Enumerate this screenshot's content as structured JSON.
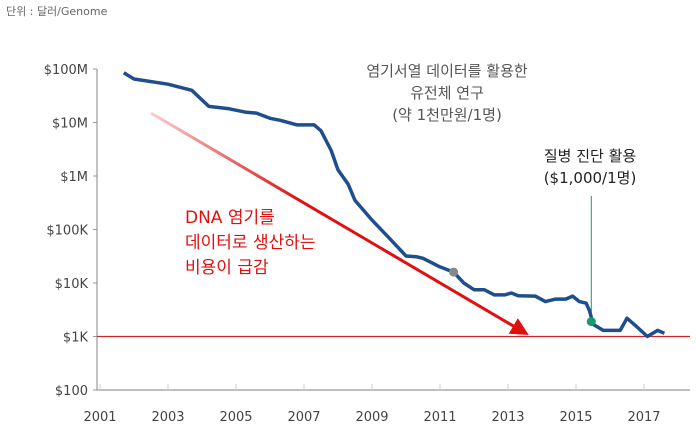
{
  "chart_data": {
    "type": "line",
    "unit_label": "단위 : 달러/Genome",
    "y_scale": "log",
    "ylim": [
      100,
      100000000
    ],
    "xlim": [
      2001,
      2018
    ],
    "y_ticks": [
      {
        "value": 100000000,
        "label": "$100M"
      },
      {
        "value": 10000000,
        "label": "$10M"
      },
      {
        "value": 1000000,
        "label": "$1M"
      },
      {
        "value": 100000,
        "label": "$100K"
      },
      {
        "value": 10000,
        "label": "$10K"
      },
      {
        "value": 1000,
        "label": "$1K"
      },
      {
        "value": 100,
        "label": "$100"
      }
    ],
    "x_ticks": [
      "2001",
      "2003",
      "2005",
      "2007",
      "2009",
      "2011",
      "2013",
      "2015",
      "2017"
    ],
    "series": [
      {
        "color": "#1f4e8c",
        "points": [
          [
            2001.7,
            85000000
          ],
          [
            2002.0,
            65000000
          ],
          [
            2003.0,
            52000000
          ],
          [
            2003.7,
            40000000
          ],
          [
            2004.2,
            20000000
          ],
          [
            2004.8,
            18000000
          ],
          [
            2005.3,
            15500000
          ],
          [
            2005.6,
            15000000
          ],
          [
            2006.0,
            12000000
          ],
          [
            2006.3,
            11000000
          ],
          [
            2006.8,
            9000000
          ],
          [
            2007.3,
            9000000
          ],
          [
            2007.5,
            7000000
          ],
          [
            2007.8,
            3000000
          ],
          [
            2008.0,
            1300000
          ],
          [
            2008.3,
            700000
          ],
          [
            2008.5,
            350000
          ],
          [
            2009.0,
            150000
          ],
          [
            2009.5,
            70000
          ],
          [
            2010.0,
            32000
          ],
          [
            2010.3,
            31000
          ],
          [
            2010.5,
            29000
          ],
          [
            2011.0,
            20000
          ],
          [
            2011.4,
            16000
          ],
          [
            2011.7,
            10000
          ],
          [
            2012.0,
            7500
          ],
          [
            2012.3,
            7500
          ],
          [
            2012.6,
            6000
          ],
          [
            2012.9,
            6000
          ],
          [
            2013.1,
            6500
          ],
          [
            2013.3,
            5800
          ],
          [
            2013.8,
            5700
          ],
          [
            2014.1,
            4500
          ],
          [
            2014.4,
            5000
          ],
          [
            2014.7,
            5000
          ],
          [
            2014.9,
            5700
          ],
          [
            2015.1,
            4500
          ],
          [
            2015.3,
            4200
          ],
          [
            2015.4,
            3000
          ],
          [
            2015.5,
            1700
          ],
          [
            2015.8,
            1300
          ],
          [
            2016.3,
            1300
          ],
          [
            2016.5,
            2200
          ],
          [
            2016.8,
            1500
          ],
          [
            2017.1,
            1000
          ],
          [
            2017.4,
            1300
          ],
          [
            2017.6,
            1150
          ]
        ]
      }
    ],
    "reference_line": {
      "value": 1000,
      "color": "#d0202a"
    },
    "markers": [
      {
        "x": 2011.4,
        "y": 16000,
        "color": "#888888"
      },
      {
        "x": 2015.45,
        "y": 1900,
        "color": "#1a9a6a"
      }
    ],
    "trend_arrow": {
      "from": [
        2002.5,
        15000000
      ],
      "to": [
        2013.5,
        1000
      ],
      "color": "#e01010"
    },
    "annotations": {
      "research": [
        "염기서열 데이터를 활용한",
        "유전체 연구",
        "(약 1천만원/1명)"
      ],
      "diagnosis": [
        "질병 진단 활용",
        "($1,000/1명)"
      ],
      "trend": [
        "DNA 염기를",
        "데이터로 생산하는",
        "비용이 급감"
      ]
    },
    "grid": false
  }
}
